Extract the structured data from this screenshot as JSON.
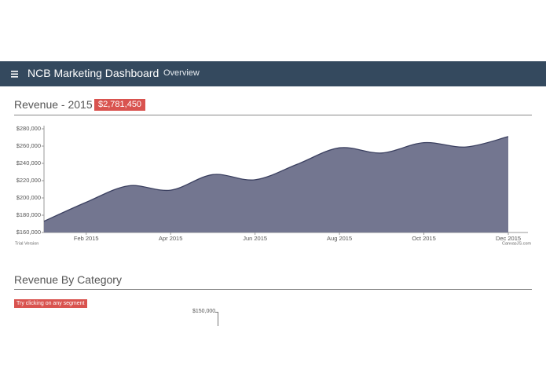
{
  "header": {
    "title": "NCB Marketing Dashboard",
    "nav": "Overview"
  },
  "revenue_section": {
    "title": "Revenue - 2015",
    "total_badge": "$2,781,450"
  },
  "chart_data": {
    "type": "area",
    "categories": [
      null,
      "Feb 2015",
      null,
      "Apr 2015",
      null,
      "Jun 2015",
      null,
      "Aug 2015",
      null,
      "Oct 2015",
      null,
      "Dec 2015"
    ],
    "series": [
      {
        "name": "Revenue",
        "color": "#737690",
        "values": [
          173000,
          195000,
          214000,
          209000,
          227000,
          221000,
          239000,
          258000,
          252000,
          264000,
          259000,
          271000
        ]
      }
    ],
    "ylim": [
      160000,
      280000
    ],
    "yticks": [
      {
        "value": 160000,
        "label": "$160,000"
      },
      {
        "value": 180000,
        "label": "$180,000"
      },
      {
        "value": 200000,
        "label": "$200,000"
      },
      {
        "value": 220000,
        "label": "$220,000"
      },
      {
        "value": 240000,
        "label": "$240,000"
      },
      {
        "value": 260000,
        "label": "$260,000"
      },
      {
        "value": 280000,
        "label": "$280,000"
      }
    ],
    "grid": false,
    "watermark": "Trial Version",
    "credit": "CanvasJS.com"
  },
  "category_section": {
    "title": "Revenue By Category",
    "hint_button": "Try clicking on any segment",
    "axis_label": "$150,000"
  }
}
